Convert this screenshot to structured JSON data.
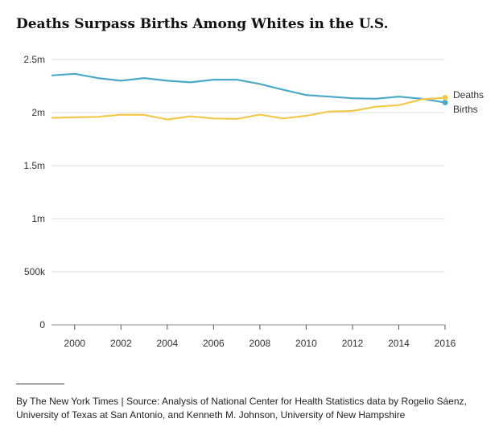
{
  "chart_data": {
    "type": "line",
    "title": "Deaths Surpass Births Among Whites in the U.S.",
    "xlabel": "",
    "ylabel": "",
    "x": [
      1999,
      2000,
      2001,
      2002,
      2003,
      2004,
      2005,
      2006,
      2007,
      2008,
      2009,
      2010,
      2011,
      2012,
      2013,
      2014,
      2015,
      2016
    ],
    "xticks": [
      2000,
      2002,
      2004,
      2006,
      2008,
      2010,
      2012,
      2014,
      2016
    ],
    "xlim": [
      1999,
      2016
    ],
    "yticks": [
      0,
      500000,
      1000000,
      1500000,
      2000000,
      2500000
    ],
    "ytick_labels": [
      "0",
      "500k",
      "1m",
      "1.5m",
      "2m",
      "2.5m"
    ],
    "ylim": [
      0,
      2500000
    ],
    "grid": true,
    "series": [
      {
        "name": "Births",
        "color": "#4aa8c8",
        "values": [
          2350000,
          2365000,
          2325000,
          2300000,
          2325000,
          2300000,
          2285000,
          2310000,
          2310000,
          2270000,
          2215000,
          2165000,
          2150000,
          2135000,
          2130000,
          2150000,
          2130000,
          2095000
        ]
      },
      {
        "name": "Deaths",
        "color": "#f2c94c",
        "values": [
          1950000,
          1955000,
          1960000,
          1980000,
          1978000,
          1935000,
          1965000,
          1945000,
          1940000,
          1980000,
          1945000,
          1970000,
          2010000,
          2015000,
          2055000,
          2070000,
          2125000,
          2140000
        ]
      }
    ]
  },
  "footer": {
    "source": "By The New York Times | Source: Analysis of National Center for Health Statistics data by Rogelio Sáenz, University of Texas at San Antonio, and Kenneth M. Johnson, University of New Hampshire"
  }
}
